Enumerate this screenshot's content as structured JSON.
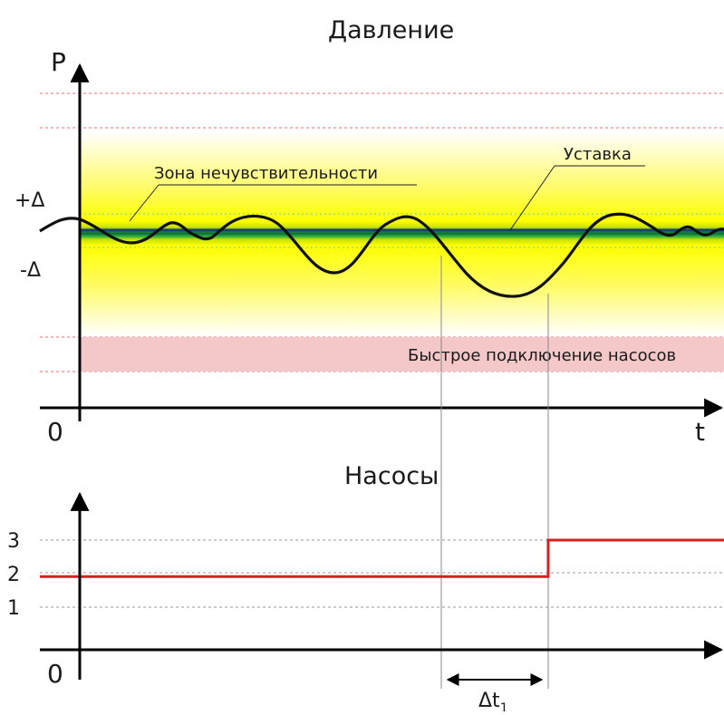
{
  "pressure_chart": {
    "title": "Давление",
    "y_axis_label": "P",
    "x_axis_label": "t",
    "origin_label": "0",
    "plus_delta_label": "+Δ",
    "minus_delta_label": "-Δ",
    "deadband_label": "Зона нечувствительности",
    "setpoint_label": "Уставка",
    "fast_connect_label": "Быстрое подключение насосов",
    "colors": {
      "zone_yellow": "#ffff00",
      "zone_green": "#00a050",
      "setpoint_line": "#1f3f6f",
      "fast_connect_band": "#f4c8c8",
      "dashed_lines": "#e07070"
    }
  },
  "pumps_chart": {
    "title": "Насосы",
    "origin_label": "0",
    "y_ticks": [
      "1",
      "2",
      "3"
    ],
    "line_color": "#d42020",
    "chart_data": {
      "type": "line",
      "step": true,
      "series": [
        {
          "x": [
            "start",
            "t1_end",
            "t1_end",
            "end"
          ],
          "y": [
            2,
            2,
            3,
            3
          ]
        }
      ],
      "ylim": [
        0,
        3
      ]
    }
  },
  "delay_label": "Δt",
  "delay_subscript": "1"
}
